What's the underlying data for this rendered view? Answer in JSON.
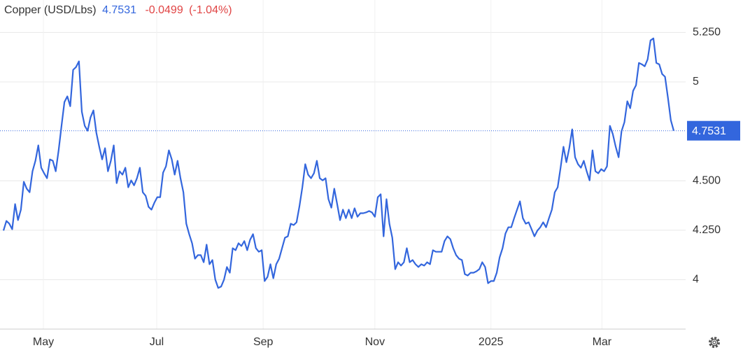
{
  "chart_data": {
    "type": "line",
    "title": "Copper (USD/Lbs)",
    "last_price": 4.7531,
    "change": -0.0499,
    "change_percent_label": "(-1.04%)",
    "color": "#3366dd",
    "up_color": "#3366dd",
    "down_color": "#e04444",
    "grid": true,
    "ylim": [
      3.75,
      5.4
    ],
    "yticks": [
      4,
      {
        "value": 4.25,
        "label": "4.250"
      },
      {
        "value": 4.5,
        "label": "4.500"
      },
      5,
      {
        "value": 5.25,
        "label": "5.250"
      }
    ],
    "xticks": [
      {
        "value": 13.75,
        "label": "May"
      },
      {
        "value": 52.8,
        "label": "Jul"
      },
      {
        "value": 89.5,
        "label": "Sep"
      },
      {
        "value": 128,
        "label": "Nov"
      },
      {
        "value": 168,
        "label": "2025"
      },
      {
        "value": 206.25,
        "label": "Mar"
      }
    ],
    "values": [
      4.248,
      4.297,
      4.283,
      4.255,
      4.382,
      4.301,
      4.354,
      4.495,
      4.46,
      4.442,
      4.548,
      4.601,
      4.679,
      4.566,
      4.538,
      4.513,
      4.608,
      4.601,
      4.548,
      4.654,
      4.778,
      4.898,
      4.927,
      4.877,
      5.061,
      5.075,
      5.104,
      4.849,
      4.778,
      4.753,
      4.821,
      4.856,
      4.743,
      4.672,
      4.608,
      4.665,
      4.548,
      4.601,
      4.679,
      4.488,
      4.548,
      4.531,
      4.566,
      4.467,
      4.502,
      4.477,
      4.513,
      4.566,
      4.442,
      4.424,
      4.368,
      4.354,
      4.389,
      4.417,
      4.417,
      4.541,
      4.573,
      4.654,
      4.608,
      4.531,
      4.601,
      4.513,
      4.442,
      4.283,
      4.23,
      4.184,
      4.106,
      4.124,
      4.124,
      4.088,
      4.177,
      4.078,
      4.099,
      4.0,
      3.958,
      3.965,
      4.0,
      4.064,
      4.035,
      4.159,
      4.149,
      4.184,
      4.17,
      4.195,
      4.149,
      4.202,
      4.23,
      4.159,
      4.141,
      4.149,
      3.993,
      4.014,
      4.078,
      4.007,
      4.078,
      4.106,
      4.159,
      4.212,
      4.219,
      4.283,
      4.276,
      4.29,
      4.371,
      4.467,
      4.584,
      4.531,
      4.513,
      4.538,
      4.601,
      4.513,
      4.502,
      4.513,
      4.407,
      4.364,
      4.46,
      4.382,
      4.301,
      4.354,
      4.311,
      4.354,
      4.311,
      4.361,
      4.318,
      4.336,
      4.336,
      4.34,
      4.347,
      4.34,
      4.318,
      4.417,
      4.432,
      4.219,
      4.407,
      4.283,
      4.212,
      4.053,
      4.088,
      4.071,
      4.088,
      4.159,
      4.088,
      4.099,
      4.078,
      4.064,
      4.078,
      4.071,
      4.088,
      4.078,
      4.149,
      4.141,
      4.141,
      4.141,
      4.195,
      4.219,
      4.205,
      4.159,
      4.124,
      4.106,
      4.099,
      4.028,
      4.021,
      4.035,
      4.035,
      4.042,
      4.053,
      4.088,
      4.064,
      3.982,
      3.993,
      3.993,
      4.035,
      4.113,
      4.159,
      4.233,
      4.265,
      4.265,
      4.311,
      4.354,
      4.396,
      4.311,
      4.283,
      4.29,
      4.255,
      4.219,
      4.248,
      4.265,
      4.29,
      4.265,
      4.311,
      4.354,
      4.442,
      4.467,
      4.566,
      4.672,
      4.594,
      4.665,
      4.76,
      4.619,
      4.584,
      4.566,
      4.601,
      4.548,
      4.502,
      4.654,
      4.548,
      4.538,
      4.559,
      4.548,
      4.573,
      4.778,
      4.736,
      4.672,
      4.619,
      4.75,
      4.796,
      4.902,
      4.867,
      4.955,
      4.983,
      5.096,
      5.089,
      5.079,
      5.114,
      5.21,
      5.22,
      5.096,
      5.089,
      5.04,
      5.026,
      4.92,
      4.806,
      4.7531
    ]
  }
}
